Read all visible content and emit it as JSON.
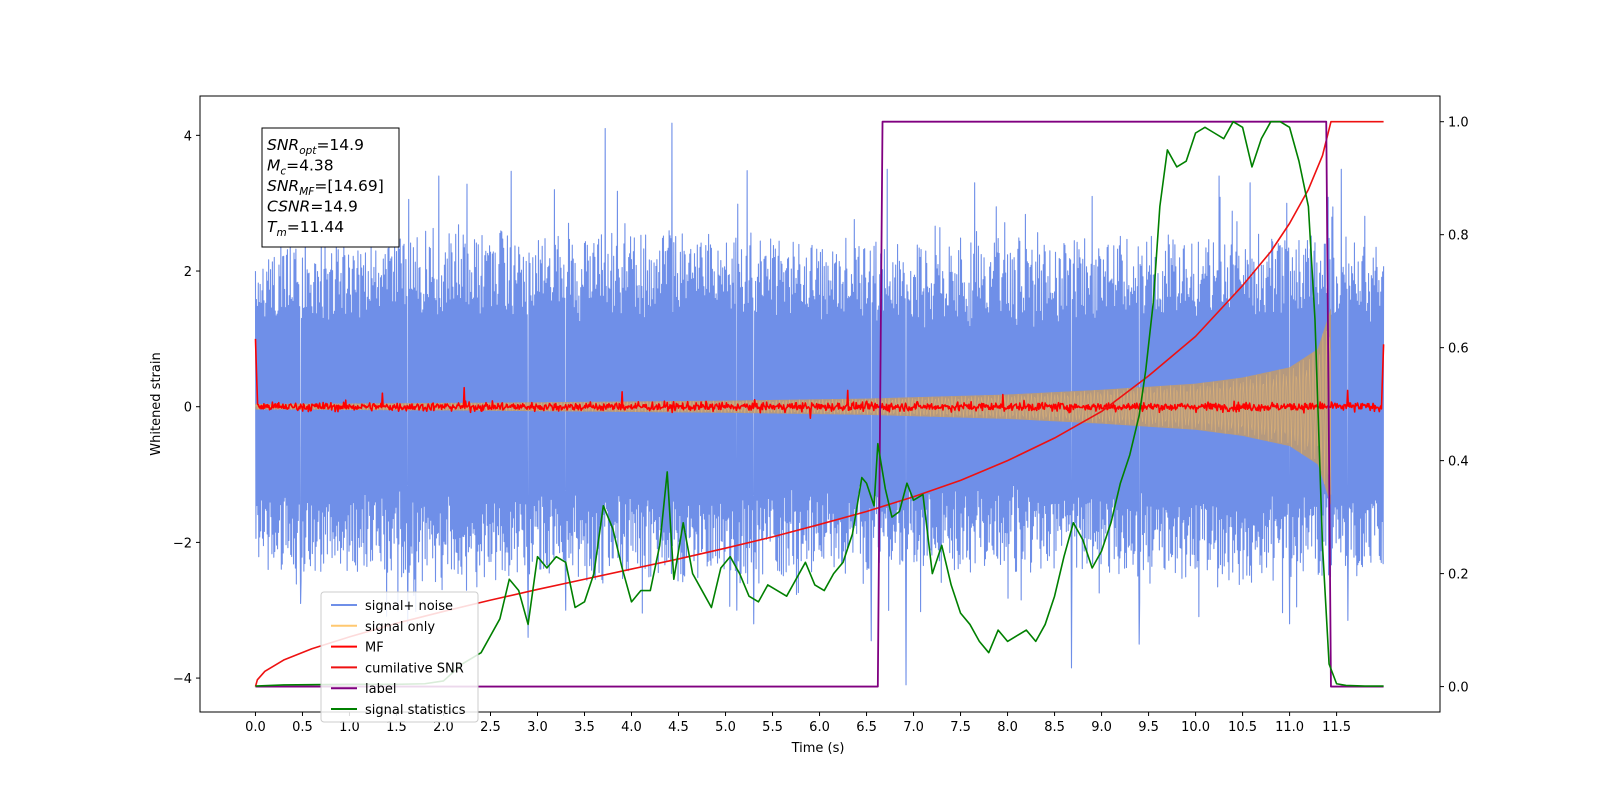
{
  "chart_data": {
    "type": "line",
    "xlabel": "Time (s)",
    "ylabel": "Whitened strain",
    "xlim": [
      -0.59,
      12.6
    ],
    "ylim": [
      -4.5,
      4.58
    ],
    "y2lim": [
      -0.045,
      1.0455
    ],
    "xticks": [
      0.0,
      0.5,
      1.0,
      1.5,
      2.0,
      2.5,
      3.0,
      3.5,
      4.0,
      4.5,
      5.0,
      5.5,
      6.0,
      6.5,
      7.0,
      7.5,
      8.0,
      8.5,
      9.0,
      9.5,
      10.0,
      10.5,
      11.0,
      11.5
    ],
    "xtick_labels": [
      "0.0",
      "0.5",
      "1.0",
      "1.5",
      "2.0",
      "2.5",
      "3.0",
      "3.5",
      "4.0",
      "4.5",
      "5.0",
      "5.5",
      "6.0",
      "6.5",
      "7.0",
      "7.5",
      "8.0",
      "8.5",
      "9.0",
      "9.5",
      "10.0",
      "10.5",
      "11.0",
      "11.5"
    ],
    "yticks": [
      -4,
      -2,
      0,
      2,
      4
    ],
    "ytick_labels": [
      "−4",
      "−2",
      "0",
      "2",
      "4"
    ],
    "y2ticks": [
      0.0,
      0.2,
      0.4,
      0.6,
      0.8,
      1.0
    ],
    "y2tick_labels": [
      "0.0",
      "0.2",
      "0.4",
      "0.6",
      "0.8",
      "1.0"
    ],
    "grid": false,
    "legend_position": "bottom-left",
    "colors": {
      "signal_noise": "#6f8fe8",
      "signal_only": "#ffc870",
      "signal_overlap": "#b89a78",
      "mf": "#ff0000",
      "cumulative_snr": "#ee1111",
      "label": "#800080",
      "signal_statistics": "#008000"
    },
    "series": [
      {
        "name": "signal+ noise",
        "axis": "left",
        "envelope": [
          [
            0.0,
            2.3
          ],
          [
            0.5,
            2.4
          ],
          [
            1.0,
            2.4
          ],
          [
            1.5,
            2.5
          ],
          [
            2.0,
            2.6
          ],
          [
            2.5,
            2.6
          ],
          [
            3.0,
            2.5
          ],
          [
            3.5,
            2.5
          ],
          [
            4.0,
            2.5
          ],
          [
            4.5,
            2.6
          ],
          [
            5.0,
            2.5
          ],
          [
            5.5,
            2.5
          ],
          [
            6.0,
            2.4
          ],
          [
            6.5,
            2.4
          ],
          [
            7.0,
            2.4
          ],
          [
            7.5,
            2.4
          ],
          [
            8.0,
            2.4
          ],
          [
            8.5,
            2.4
          ],
          [
            9.0,
            2.4
          ],
          [
            9.5,
            2.5
          ],
          [
            10.0,
            2.5
          ],
          [
            10.5,
            2.5
          ],
          [
            11.0,
            2.5
          ],
          [
            11.5,
            2.5
          ],
          [
            12.0,
            2.3
          ]
        ],
        "peaks": [
          [
            0.2,
            2.2
          ],
          [
            1.95,
            3.4
          ],
          [
            2.72,
            3.47
          ],
          [
            3.18,
            3.2
          ],
          [
            3.72,
            4.1
          ],
          [
            4.43,
            4.18
          ],
          [
            5.23,
            3.48
          ],
          [
            6.72,
            3.5
          ],
          [
            7.65,
            3.3
          ],
          [
            8.9,
            3.1
          ],
          [
            10.25,
            3.4
          ],
          [
            10.58,
            3.3
          ],
          [
            11.55,
            3.5
          ]
        ],
        "troughs": [
          [
            0.48,
            -2.9
          ],
          [
            1.62,
            -3.2
          ],
          [
            2.9,
            -3.4
          ],
          [
            3.3,
            -3.0
          ],
          [
            5.12,
            -3.0
          ],
          [
            5.3,
            -3.2
          ],
          [
            6.55,
            -3.45
          ],
          [
            6.92,
            -4.1
          ],
          [
            8.68,
            -3.85
          ],
          [
            9.4,
            -3.5
          ],
          [
            11.0,
            -3.2
          ],
          [
            11.62,
            -3.15
          ]
        ]
      },
      {
        "name": "signal only",
        "axis": "left",
        "amplitude": [
          [
            0.0,
            0.04
          ],
          [
            2.5,
            0.06
          ],
          [
            5.0,
            0.09
          ],
          [
            6.5,
            0.12
          ],
          [
            8.0,
            0.18
          ],
          [
            9.0,
            0.25
          ],
          [
            10.0,
            0.34
          ],
          [
            10.5,
            0.43
          ],
          [
            11.0,
            0.58
          ],
          [
            11.3,
            0.85
          ],
          [
            11.44,
            1.45
          ],
          [
            11.45,
            0.0
          ]
        ]
      },
      {
        "name": "MF",
        "axis": "left",
        "start_value": 1.0,
        "end_value": 0.92,
        "spikes": [
          [
            1.35,
            0.2
          ],
          [
            2.22,
            0.28
          ],
          [
            3.9,
            0.22
          ],
          [
            5.9,
            -0.17
          ],
          [
            6.3,
            0.24
          ],
          [
            7.95,
            0.18
          ],
          [
            11.62,
            0.24
          ]
        ]
      },
      {
        "name": "cumilative SNR",
        "axis": "right",
        "x": [
          0.0,
          0.02,
          0.1,
          0.3,
          0.6,
          1.0,
          1.5,
          2.0,
          2.5,
          3.0,
          3.5,
          4.0,
          4.5,
          5.0,
          5.5,
          6.0,
          6.5,
          7.0,
          7.5,
          8.0,
          8.5,
          9.0,
          9.5,
          10.0,
          10.5,
          10.8,
          11.0,
          11.2,
          11.35,
          11.44,
          12.0
        ],
        "values": [
          0.0,
          0.012,
          0.027,
          0.047,
          0.067,
          0.088,
          0.112,
          0.133,
          0.153,
          0.172,
          0.19,
          0.208,
          0.226,
          0.245,
          0.265,
          0.287,
          0.31,
          0.336,
          0.365,
          0.4,
          0.44,
          0.487,
          0.55,
          0.62,
          0.71,
          0.77,
          0.82,
          0.88,
          0.94,
          1.0,
          1.0
        ]
      },
      {
        "name": "label",
        "axis": "right",
        "x": [
          0.0,
          6.62,
          6.67,
          11.39,
          11.44,
          12.0
        ],
        "values": [
          0.0,
          0.0,
          1.0,
          1.0,
          0.0,
          0.0
        ]
      },
      {
        "name": "signal statistics",
        "axis": "right",
        "x": [
          0.0,
          0.3,
          1.0,
          1.5,
          1.8,
          2.0,
          2.2,
          2.4,
          2.5,
          2.6,
          2.7,
          2.8,
          2.9,
          3.0,
          3.1,
          3.2,
          3.3,
          3.4,
          3.5,
          3.6,
          3.7,
          3.8,
          3.9,
          4.0,
          4.1,
          4.2,
          4.3,
          4.38,
          4.45,
          4.55,
          4.65,
          4.75,
          4.85,
          4.95,
          5.05,
          5.15,
          5.25,
          5.35,
          5.45,
          5.55,
          5.65,
          5.75,
          5.85,
          5.95,
          6.05,
          6.15,
          6.25,
          6.35,
          6.45,
          6.5,
          6.58,
          6.62,
          6.7,
          6.77,
          6.85,
          6.93,
          7.0,
          7.1,
          7.2,
          7.3,
          7.4,
          7.5,
          7.6,
          7.7,
          7.8,
          7.9,
          8.0,
          8.1,
          8.2,
          8.3,
          8.4,
          8.5,
          8.6,
          8.7,
          8.8,
          8.9,
          9.0,
          9.1,
          9.2,
          9.3,
          9.4,
          9.47,
          9.55,
          9.62,
          9.7,
          9.8,
          9.9,
          10.0,
          10.1,
          10.2,
          10.3,
          10.4,
          10.5,
          10.6,
          10.7,
          10.8,
          10.9,
          11.0,
          11.1,
          11.2,
          11.27,
          11.35,
          11.42,
          11.5,
          11.6,
          11.8,
          12.0
        ],
        "values": [
          0.001,
          0.003,
          0.004,
          0.004,
          0.005,
          0.01,
          0.04,
          0.06,
          0.09,
          0.12,
          0.19,
          0.17,
          0.11,
          0.23,
          0.21,
          0.23,
          0.22,
          0.14,
          0.15,
          0.2,
          0.32,
          0.28,
          0.21,
          0.15,
          0.17,
          0.17,
          0.25,
          0.38,
          0.19,
          0.29,
          0.2,
          0.17,
          0.14,
          0.21,
          0.23,
          0.2,
          0.16,
          0.15,
          0.18,
          0.17,
          0.16,
          0.19,
          0.22,
          0.18,
          0.17,
          0.2,
          0.22,
          0.27,
          0.37,
          0.36,
          0.32,
          0.43,
          0.35,
          0.3,
          0.31,
          0.36,
          0.33,
          0.34,
          0.2,
          0.25,
          0.18,
          0.13,
          0.11,
          0.08,
          0.06,
          0.1,
          0.08,
          0.09,
          0.1,
          0.08,
          0.11,
          0.16,
          0.23,
          0.29,
          0.26,
          0.21,
          0.24,
          0.29,
          0.36,
          0.41,
          0.48,
          0.56,
          0.68,
          0.85,
          0.95,
          0.92,
          0.93,
          0.98,
          0.99,
          0.98,
          0.97,
          1.0,
          0.99,
          0.92,
          0.97,
          1.0,
          1.0,
          0.99,
          0.93,
          0.85,
          0.65,
          0.25,
          0.04,
          0.005,
          0.002,
          0.001,
          0.001
        ]
      }
    ],
    "annotation": [
      {
        "base": "SNR",
        "sub": "opt",
        "value": "=14.9"
      },
      {
        "base": "M",
        "sub": "c",
        "value": "=4.38"
      },
      {
        "base": "SNR",
        "sub": "MF",
        "value": "=[14.69]"
      },
      {
        "base": "CSNR",
        "sub": "",
        "value": "=14.9"
      },
      {
        "base": "T",
        "sub": "m",
        "value": "=11.44"
      }
    ]
  }
}
